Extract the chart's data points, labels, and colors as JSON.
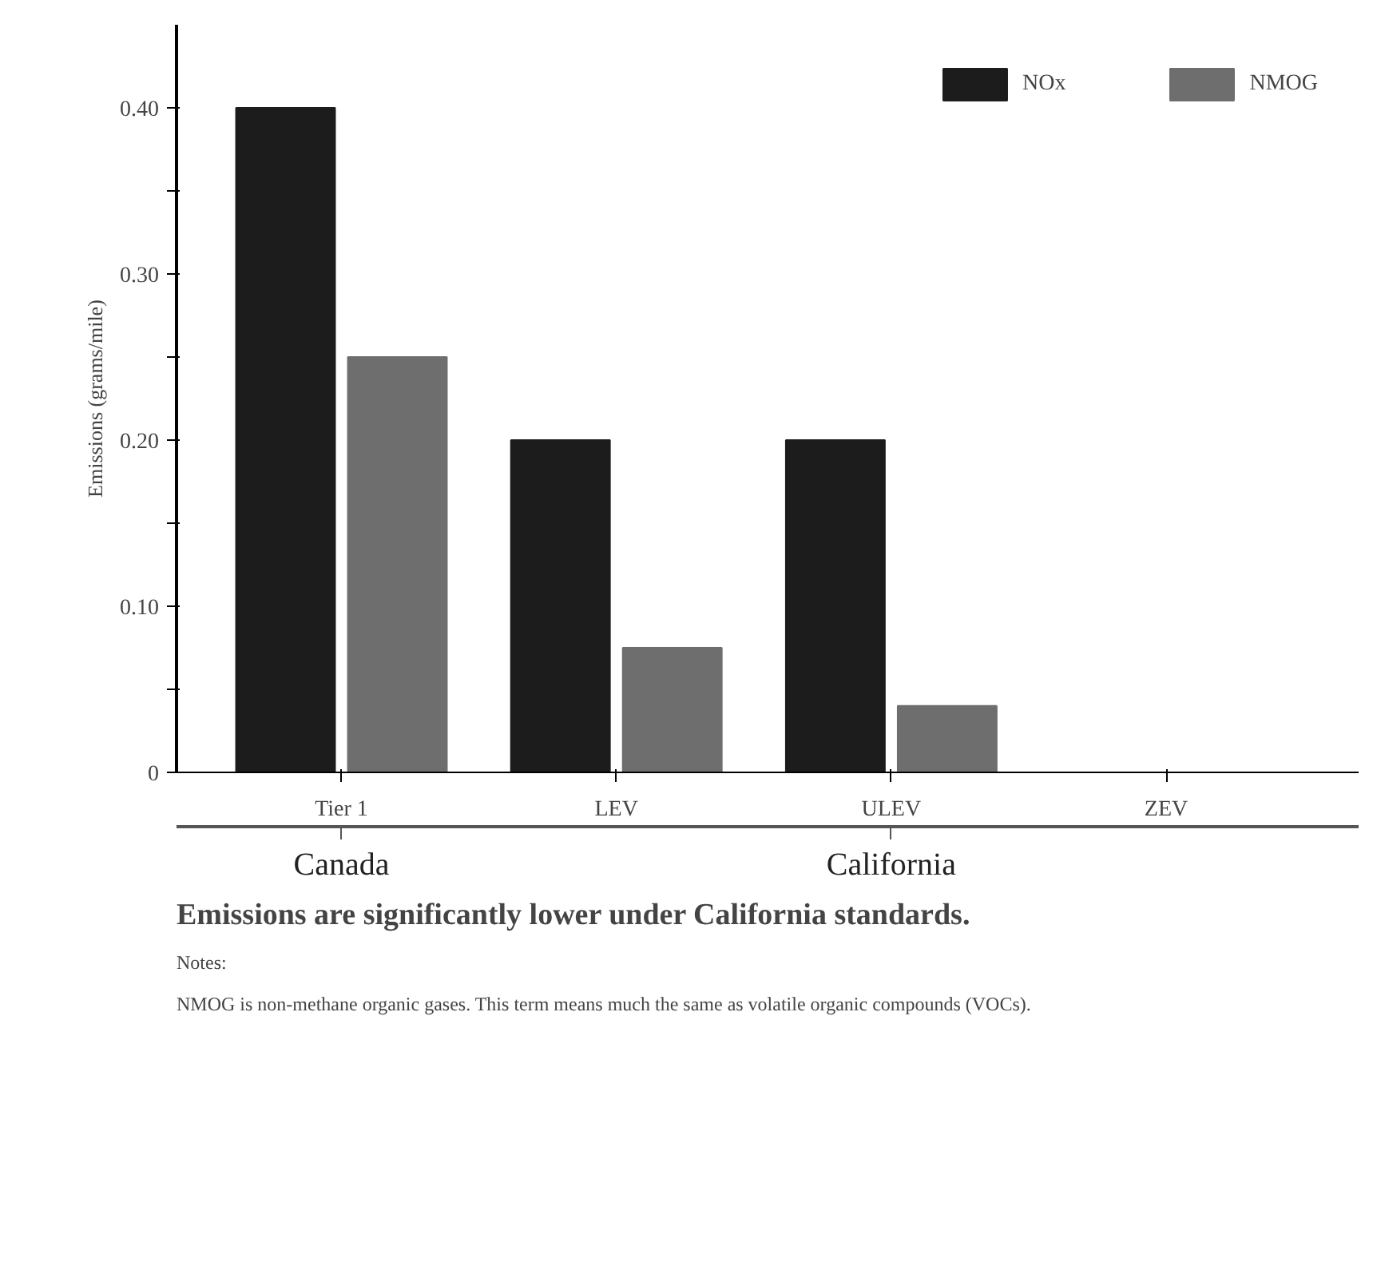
{
  "chart_data": {
    "type": "bar",
    "title": "Emissions are significantly lower under California standards.",
    "ylabel": "Emissions (grams/mile)",
    "categories": [
      "Tier 1",
      "LEV",
      "ULEV",
      "ZEV"
    ],
    "series": [
      {
        "name": "NOx",
        "color": "#1c1c1c",
        "values": [
          0.4,
          0.2,
          0.2,
          0
        ]
      },
      {
        "name": "NMOG",
        "color": "#6e6e6e",
        "values": [
          0.25,
          0.075,
          0.04,
          0
        ]
      }
    ],
    "ylim": [
      0,
      0.45
    ],
    "yticks": [
      0,
      {
        "value": 0.05,
        "label": null
      },
      {
        "value": 0.1,
        "label": "0.10"
      },
      {
        "value": 0.15,
        "label": null
      },
      {
        "value": 0.2,
        "label": "0.20"
      },
      {
        "value": 0.25,
        "label": null
      },
      {
        "value": 0.3,
        "label": "0.30"
      },
      {
        "value": 0.35,
        "label": null
      },
      {
        "value": 0.4,
        "label": "0.40"
      }
    ],
    "annotations": [
      "Canada",
      "California",
      "Notes:",
      "NMOG is non-methane organic gases. This term means much the same as volatile organic compounds (VOCs)."
    ],
    "legend": "top right",
    "grid": false
  }
}
